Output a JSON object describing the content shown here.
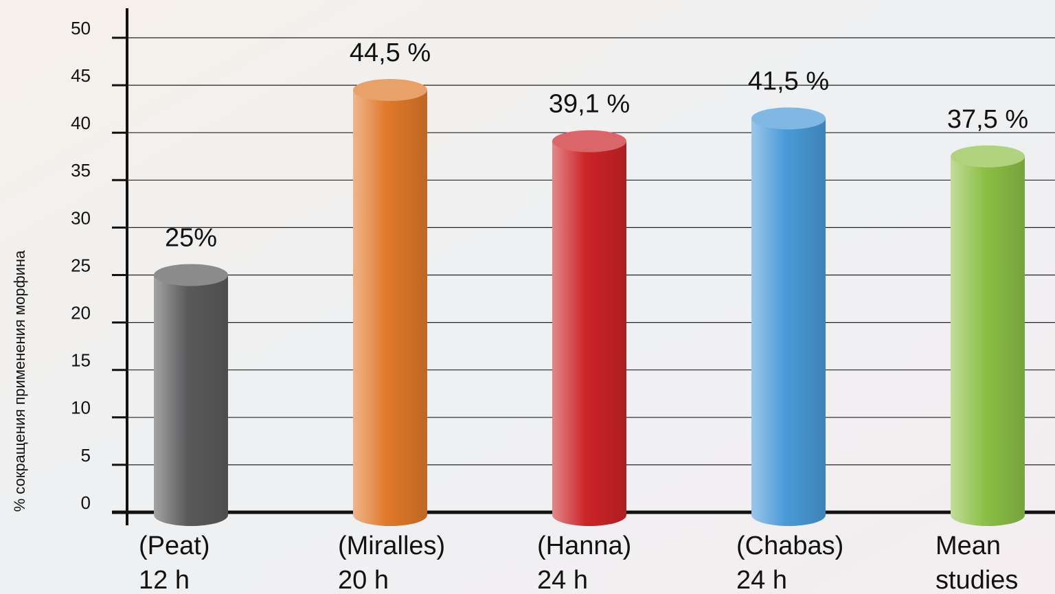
{
  "chart_data": {
    "type": "bar",
    "y_label": "% сокращения применения морфина",
    "categories": [
      [
        "(Peat)",
        "12 h"
      ],
      [
        "(Miralles)",
        "20 h"
      ],
      [
        "(Hanna)",
        "24 h"
      ],
      [
        "(Chabas)",
        "24 h"
      ],
      [
        "Mean",
        "studies"
      ]
    ],
    "values": [
      25,
      44.5,
      39.1,
      41.5,
      37.5
    ],
    "value_labels": [
      "25%",
      "44,5 %",
      "39,1 %",
      "41,5 %",
      "37,5 %"
    ],
    "colors": [
      "#5a5a5c",
      "#e0792a",
      "#cc2428",
      "#4a9ad8",
      "#8cc046"
    ],
    "ylim": [
      0,
      50
    ],
    "yticks": [
      0,
      5,
      10,
      15,
      20,
      25,
      30,
      35,
      40,
      45,
      50
    ],
    "grid": true
  }
}
